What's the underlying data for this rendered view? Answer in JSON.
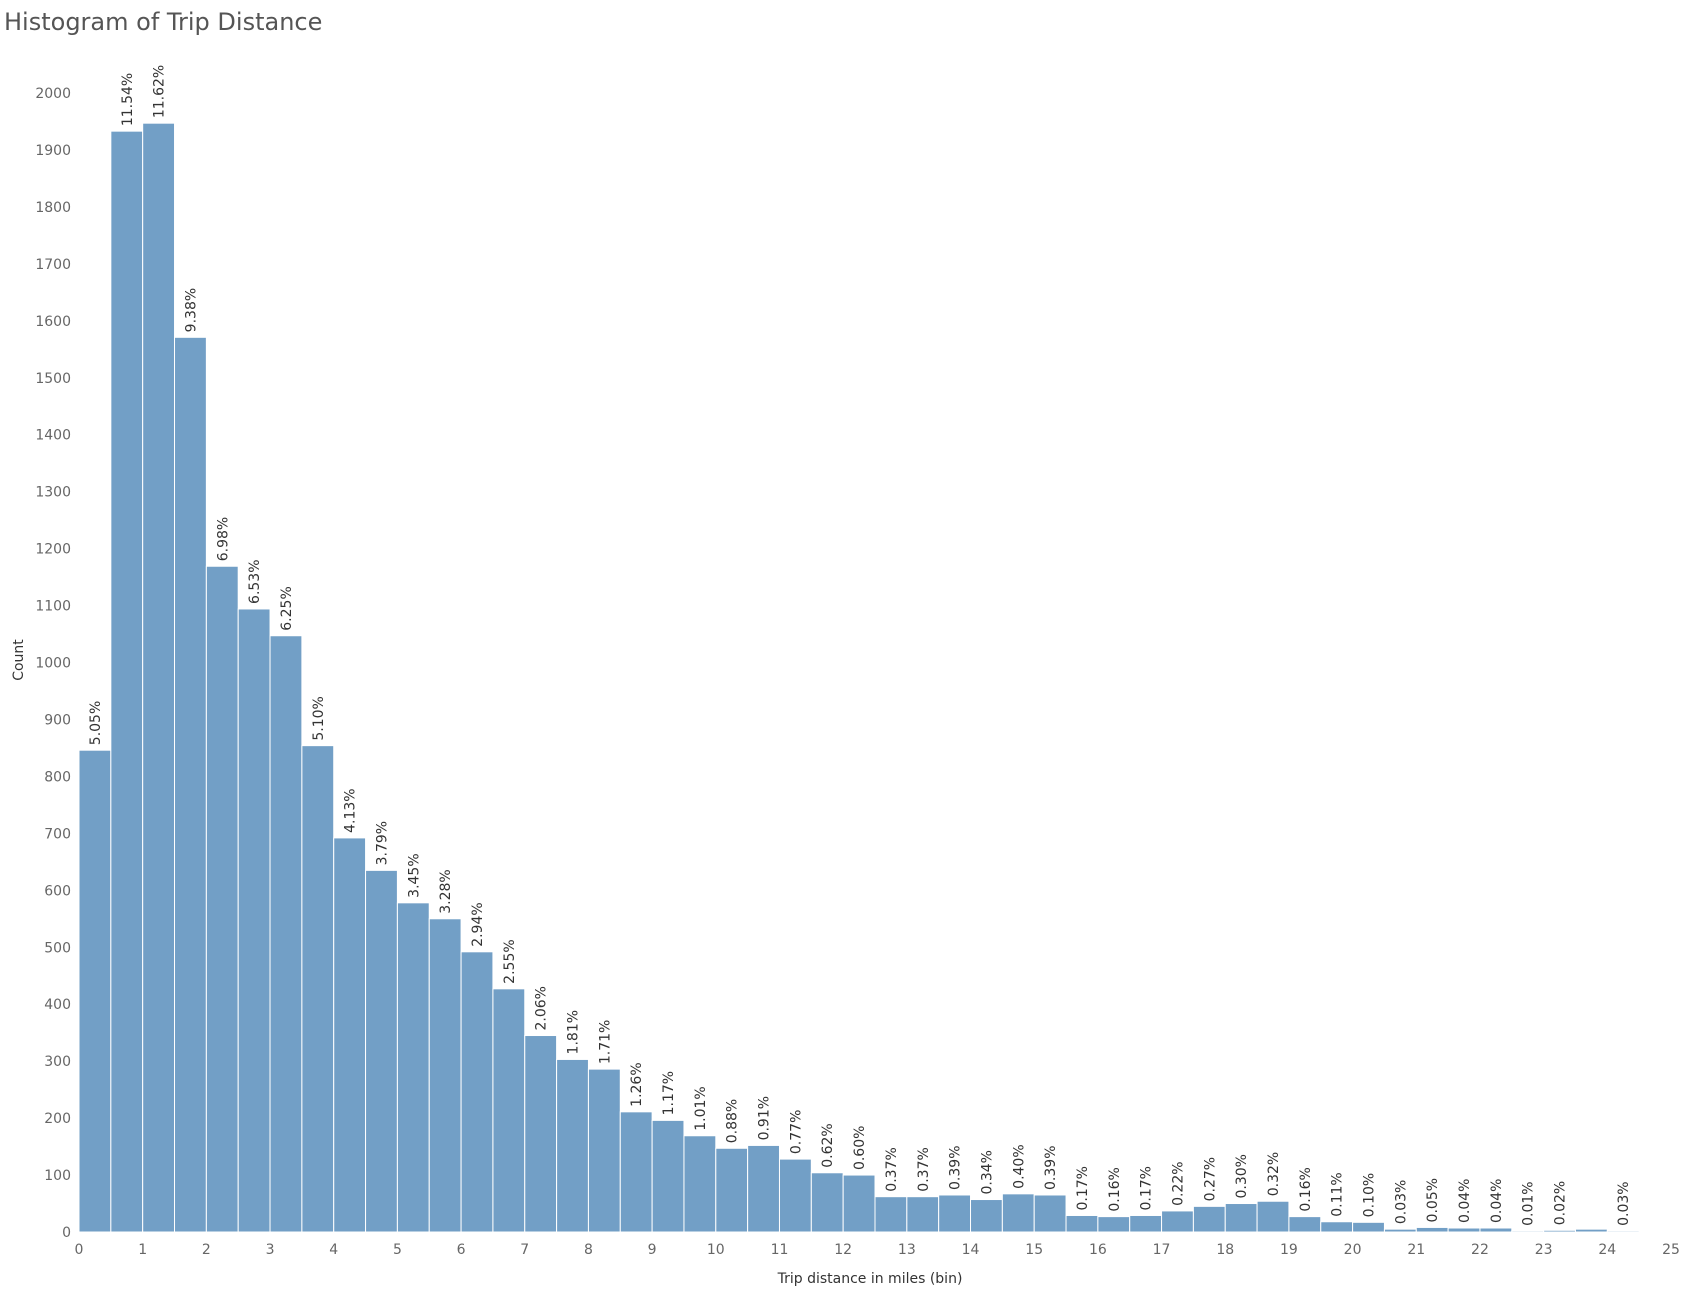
{
  "chart_data": {
    "type": "bar",
    "title": "Histogram of Trip Distance",
    "xlabel": "Trip distance in miles  (bin)",
    "ylabel": "Count",
    "xlim": [
      0,
      25
    ],
    "ylim": [
      0,
      2000
    ],
    "bin_width": 0.5,
    "x_ticks": [
      0,
      1,
      2,
      3,
      4,
      5,
      6,
      7,
      8,
      9,
      10,
      11,
      12,
      13,
      14,
      15,
      16,
      17,
      18,
      19,
      20,
      21,
      22,
      23,
      24,
      25
    ],
    "y_ticks": [
      0,
      100,
      200,
      300,
      400,
      500,
      600,
      700,
      800,
      900,
      1000,
      1100,
      1200,
      1300,
      1400,
      1500,
      1600,
      1700,
      1800,
      1900,
      2000
    ],
    "bin_starts": [
      0,
      0.5,
      1,
      1.5,
      2,
      2.5,
      3,
      3.5,
      4,
      4.5,
      5,
      5.5,
      6,
      6.5,
      7,
      7.5,
      8,
      8.5,
      9,
      9.5,
      10,
      10.5,
      11,
      11.5,
      12,
      12.5,
      13,
      13.5,
      14,
      14.5,
      15,
      15.5,
      16,
      16.5,
      17,
      17.5,
      18,
      18.5,
      19,
      19.5,
      20,
      20.5,
      21,
      21.5,
      22,
      22.5,
      23,
      23.5,
      24,
      24.5
    ],
    "values": [
      846,
      1933,
      1947,
      1571,
      1169,
      1094,
      1047,
      854,
      692,
      635,
      578,
      550,
      492,
      427,
      345,
      303,
      286,
      211,
      196,
      169,
      147,
      152,
      128,
      104,
      100,
      62,
      62,
      65,
      57,
      67,
      65,
      29,
      27,
      29,
      37,
      45,
      50,
      54,
      27,
      18,
      17,
      5,
      8,
      7,
      7,
      2,
      3,
      5,
      2
    ],
    "labels": [
      "5.05%",
      "11.54%",
      "11.62%",
      "9.38%",
      "6.98%",
      "6.53%",
      "6.25%",
      "5.10%",
      "4.13%",
      "3.79%",
      "3.45%",
      "3.28%",
      "2.94%",
      "2.55%",
      "2.06%",
      "1.81%",
      "1.71%",
      "1.26%",
      "1.17%",
      "1.01%",
      "0.88%",
      "0.91%",
      "0.77%",
      "0.62%",
      "0.60%",
      "0.37%",
      "0.37%",
      "0.39%",
      "0.34%",
      "0.40%",
      "0.39%",
      "0.17%",
      "0.16%",
      "0.17%",
      "0.22%",
      "0.27%",
      "0.30%",
      "0.32%",
      "0.16%",
      "0.11%",
      "0.10%",
      "0.03%",
      "0.05%",
      "0.04%",
      "0.04%",
      "0.01%",
      "0.02%",
      "0.03%",
      "0.01%"
    ],
    "label_positions": [
      0,
      1,
      2,
      3,
      4,
      5,
      6,
      7,
      8,
      9,
      10,
      11,
      12,
      13,
      14,
      15,
      16,
      17,
      18,
      19,
      20,
      21,
      22,
      23,
      24,
      25,
      26,
      27,
      28,
      29,
      30,
      31,
      32,
      33,
      34,
      35,
      36,
      37,
      38,
      39,
      40,
      41,
      42,
      43,
      44,
      45,
      46,
      48,
      49
    ],
    "bar_color": "#729fc6",
    "bar_edge_color": "#ffffff",
    "grid": false
  }
}
